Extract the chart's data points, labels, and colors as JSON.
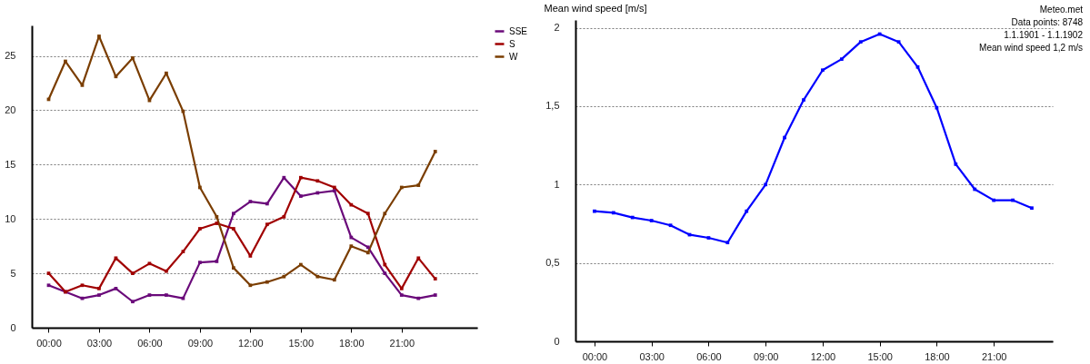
{
  "chart_data": [
    {
      "type": "line",
      "x": [
        0,
        1,
        2,
        3,
        4,
        5,
        6,
        7,
        8,
        9,
        10,
        11,
        12,
        13,
        14,
        15,
        16,
        17,
        18,
        19,
        20,
        21,
        22,
        23
      ],
      "xlim": [
        -1,
        25.5
      ],
      "xticks": [
        {
          "value": 0,
          "label": "00:00"
        },
        {
          "value": 3,
          "label": "03:00"
        },
        {
          "value": 6,
          "label": "06:00"
        },
        {
          "value": 9,
          "label": "09:00"
        },
        {
          "value": 12,
          "label": "12:00"
        },
        {
          "value": 15,
          "label": "15:00"
        },
        {
          "value": 18,
          "label": "18:00"
        },
        {
          "value": 21,
          "label": "21:00"
        }
      ],
      "ylim": [
        0,
        27.8
      ],
      "yticks": [
        0,
        5,
        10,
        15,
        20,
        25
      ],
      "grid": "y",
      "legend": "top right",
      "marker": "square",
      "line_style": "solid",
      "series": [
        {
          "name": "SSE",
          "color": "#6a0a7a",
          "values": [
            3.9,
            3.3,
            2.7,
            3.0,
            3.6,
            2.4,
            3.0,
            3.0,
            2.7,
            6.0,
            6.1,
            10.5,
            11.6,
            11.4,
            13.8,
            12.1,
            12.4,
            12.6,
            8.3,
            7.4,
            5.0,
            3.0,
            2.7,
            3.0
          ]
        },
        {
          "name": "S",
          "color": "#a00000",
          "values": [
            5.0,
            3.3,
            3.9,
            3.6,
            6.4,
            5.0,
            5.9,
            5.2,
            7.0,
            9.1,
            9.6,
            9.1,
            6.6,
            9.5,
            10.2,
            13.8,
            13.5,
            12.9,
            11.3,
            10.5,
            5.8,
            3.6,
            6.4,
            4.5
          ]
        },
        {
          "name": "W",
          "color": "#7a3d00",
          "values": [
            21.0,
            24.5,
            22.3,
            26.8,
            23.1,
            24.8,
            20.9,
            23.4,
            19.9,
            12.9,
            10.2,
            5.5,
            3.9,
            4.2,
            4.7,
            5.8,
            4.7,
            4.4,
            7.5,
            6.9,
            10.5,
            12.9,
            13.1,
            16.2
          ]
        }
      ]
    },
    {
      "type": "line",
      "x": [
        0,
        1,
        2,
        3,
        4,
        5,
        6,
        7,
        8,
        9,
        10,
        11,
        12,
        13,
        14,
        15,
        16,
        17,
        18,
        19,
        20,
        21,
        22,
        23
      ],
      "xlim": [
        -1,
        24.1
      ],
      "xticks": [
        {
          "value": 0,
          "label": "00:00"
        },
        {
          "value": 3,
          "label": "03:00"
        },
        {
          "value": 6,
          "label": "06:00"
        },
        {
          "value": 9,
          "label": "09:00"
        },
        {
          "value": 12,
          "label": "12:00"
        },
        {
          "value": 15,
          "label": "15:00"
        },
        {
          "value": 18,
          "label": "18:00"
        },
        {
          "value": 21,
          "label": "21:00"
        }
      ],
      "ylim": [
        0,
        2.05
      ],
      "yticks": [
        0,
        {
          "value": 0.5,
          "label": "0,5"
        },
        1,
        {
          "value": 1.5,
          "label": "1,5"
        },
        2
      ],
      "grid": "y",
      "marker": "square",
      "line_style": "solid",
      "ylabel": "Mean wind speed [m/s]",
      "annotations": [
        "Meteo.met",
        "Data points: 8748",
        "1.1.1901 - 1.1.1902",
        "Mean wind speed 1,2 m/s"
      ],
      "series": [
        {
          "color": "#0000ff",
          "values": [
            0.83,
            0.82,
            0.79,
            0.77,
            0.74,
            0.68,
            0.66,
            0.63,
            0.83,
            1.0,
            1.3,
            1.54,
            1.73,
            1.8,
            1.91,
            1.96,
            1.91,
            1.75,
            1.49,
            1.13,
            0.97,
            0.9,
            0.9,
            0.85
          ]
        }
      ]
    }
  ]
}
